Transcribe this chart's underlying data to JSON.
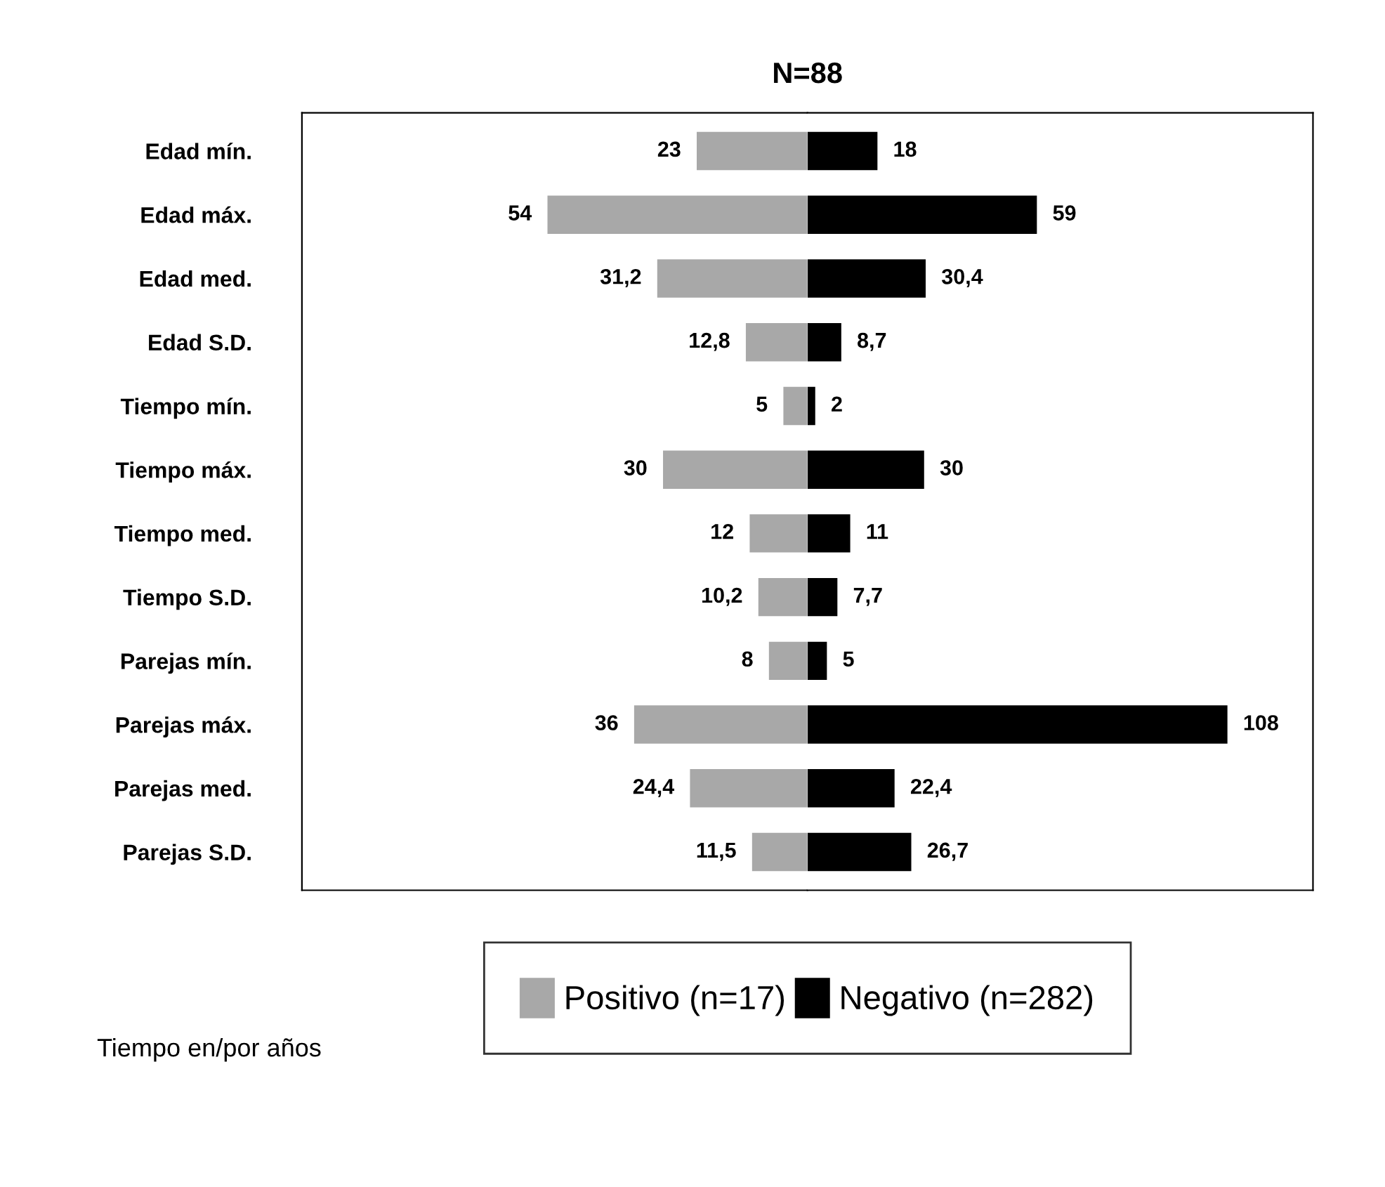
{
  "chart_data": [
    {
      "type": "bar",
      "orientation": "horizontal",
      "title": "N=88",
      "xlim": [
        105,
        0
      ],
      "categories": [
        "Edad mín.",
        "Edad máx.",
        "Edad med.",
        "Edad S.D.",
        "Tiempo mín.",
        "Tiempo máx.",
        "Tiempo med.",
        "Tiempo S.D.",
        "Parejas mín.",
        "Parejas máx.",
        "Parejas med.",
        "Parejas S.D."
      ],
      "series": [
        {
          "name": "Positivo (n=17)",
          "color": "#a8a8a8",
          "values": [
            23,
            54,
            31.2,
            12.8,
            5,
            30,
            12,
            10.2,
            8,
            36,
            24.4,
            11.5
          ],
          "value_labels": [
            "23",
            "54",
            "31,2",
            "12,8",
            "5",
            "30",
            "12",
            "10,2",
            "8",
            "36",
            "24,4",
            "11,5"
          ]
        }
      ],
      "tick_labels": "y",
      "legend": "bottom"
    },
    {
      "type": "bar",
      "orientation": "horizontal",
      "xlim": [
        0,
        130
      ],
      "categories": [
        null,
        null,
        null,
        null,
        null,
        null,
        null,
        null,
        null,
        null,
        null,
        null
      ],
      "series": [
        {
          "name": "Negativo (n=282)",
          "color": "#000000",
          "values": [
            18,
            59,
            30.4,
            8.7,
            2,
            30,
            11,
            7.7,
            5,
            108,
            22.4,
            26.7
          ],
          "value_labels": [
            "18",
            "59",
            "30,4",
            "8,7",
            "2",
            "30",
            "11",
            "7,7",
            "5",
            "108",
            "22,4",
            "26,7"
          ]
        }
      ],
      "tick_labels": false,
      "legend": "bottom",
      "annotations": [
        "Tiempo en/por años"
      ]
    }
  ]
}
